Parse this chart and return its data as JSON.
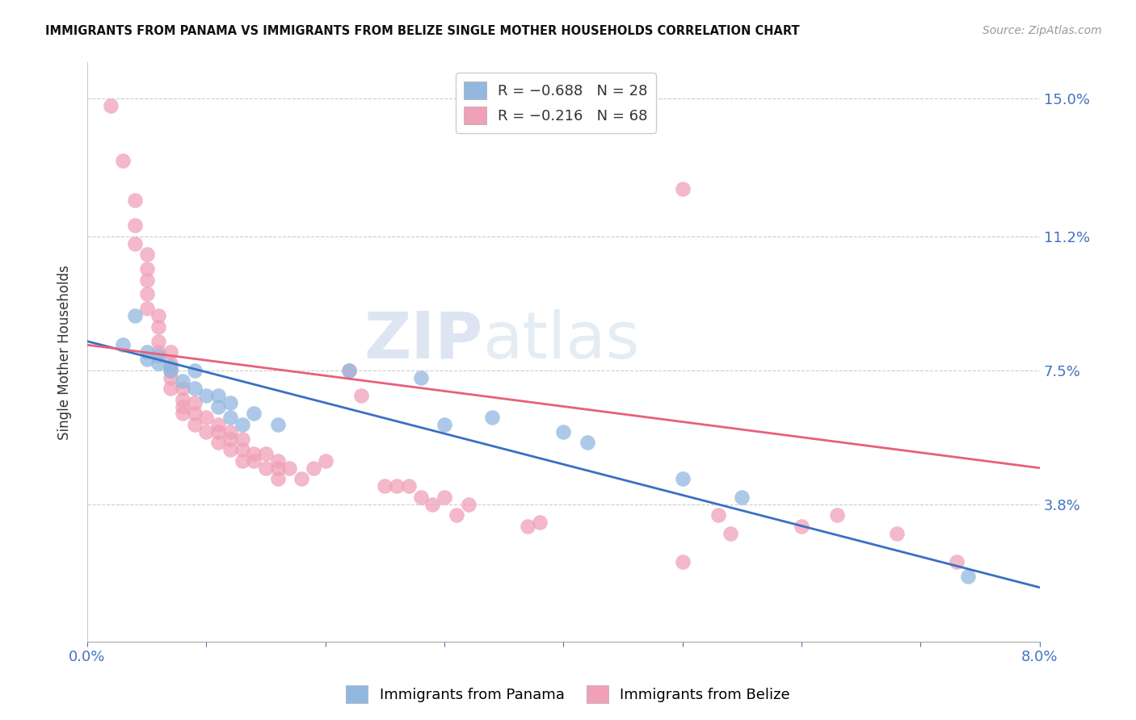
{
  "title": "IMMIGRANTS FROM PANAMA VS IMMIGRANTS FROM BELIZE SINGLE MOTHER HOUSEHOLDS CORRELATION CHART",
  "source": "Source: ZipAtlas.com",
  "ylabel": "Single Mother Households",
  "ytick_labels": [
    "15.0%",
    "11.2%",
    "7.5%",
    "3.8%"
  ],
  "ytick_values": [
    0.15,
    0.112,
    0.075,
    0.038
  ],
  "xmin": 0.0,
  "xmax": 0.08,
  "ymin": 0.0,
  "ymax": 0.16,
  "panama_color": "#93b8e0",
  "belize_color": "#f0a0b8",
  "panama_line_color": "#3a6fc4",
  "belize_line_color": "#e8607a",
  "panama_points": [
    [
      0.003,
      0.082
    ],
    [
      0.004,
      0.09
    ],
    [
      0.005,
      0.08
    ],
    [
      0.005,
      0.078
    ],
    [
      0.006,
      0.079
    ],
    [
      0.006,
      0.077
    ],
    [
      0.007,
      0.075
    ],
    [
      0.007,
      0.076
    ],
    [
      0.008,
      0.072
    ],
    [
      0.009,
      0.07
    ],
    [
      0.009,
      0.075
    ],
    [
      0.01,
      0.068
    ],
    [
      0.011,
      0.068
    ],
    [
      0.011,
      0.065
    ],
    [
      0.012,
      0.066
    ],
    [
      0.012,
      0.062
    ],
    [
      0.013,
      0.06
    ],
    [
      0.014,
      0.063
    ],
    [
      0.016,
      0.06
    ],
    [
      0.022,
      0.075
    ],
    [
      0.028,
      0.073
    ],
    [
      0.03,
      0.06
    ],
    [
      0.034,
      0.062
    ],
    [
      0.04,
      0.058
    ],
    [
      0.042,
      0.055
    ],
    [
      0.05,
      0.045
    ],
    [
      0.055,
      0.04
    ],
    [
      0.074,
      0.018
    ]
  ],
  "belize_points": [
    [
      0.002,
      0.148
    ],
    [
      0.003,
      0.133
    ],
    [
      0.004,
      0.122
    ],
    [
      0.004,
      0.115
    ],
    [
      0.004,
      0.11
    ],
    [
      0.005,
      0.107
    ],
    [
      0.005,
      0.103
    ],
    [
      0.005,
      0.1
    ],
    [
      0.005,
      0.096
    ],
    [
      0.005,
      0.092
    ],
    [
      0.006,
      0.09
    ],
    [
      0.006,
      0.087
    ],
    [
      0.006,
      0.083
    ],
    [
      0.006,
      0.08
    ],
    [
      0.007,
      0.08
    ],
    [
      0.007,
      0.077
    ],
    [
      0.007,
      0.075
    ],
    [
      0.007,
      0.073
    ],
    [
      0.007,
      0.07
    ],
    [
      0.008,
      0.07
    ],
    [
      0.008,
      0.067
    ],
    [
      0.008,
      0.065
    ],
    [
      0.008,
      0.063
    ],
    [
      0.009,
      0.066
    ],
    [
      0.009,
      0.063
    ],
    [
      0.009,
      0.06
    ],
    [
      0.01,
      0.062
    ],
    [
      0.01,
      0.058
    ],
    [
      0.011,
      0.058
    ],
    [
      0.011,
      0.06
    ],
    [
      0.011,
      0.055
    ],
    [
      0.012,
      0.058
    ],
    [
      0.012,
      0.056
    ],
    [
      0.012,
      0.053
    ],
    [
      0.013,
      0.056
    ],
    [
      0.013,
      0.053
    ],
    [
      0.013,
      0.05
    ],
    [
      0.014,
      0.052
    ],
    [
      0.014,
      0.05
    ],
    [
      0.015,
      0.052
    ],
    [
      0.015,
      0.048
    ],
    [
      0.016,
      0.05
    ],
    [
      0.016,
      0.048
    ],
    [
      0.016,
      0.045
    ],
    [
      0.017,
      0.048
    ],
    [
      0.018,
      0.045
    ],
    [
      0.019,
      0.048
    ],
    [
      0.02,
      0.05
    ],
    [
      0.022,
      0.075
    ],
    [
      0.023,
      0.068
    ],
    [
      0.025,
      0.043
    ],
    [
      0.026,
      0.043
    ],
    [
      0.027,
      0.043
    ],
    [
      0.028,
      0.04
    ],
    [
      0.029,
      0.038
    ],
    [
      0.03,
      0.04
    ],
    [
      0.031,
      0.035
    ],
    [
      0.032,
      0.038
    ],
    [
      0.037,
      0.032
    ],
    [
      0.038,
      0.033
    ],
    [
      0.05,
      0.125
    ],
    [
      0.05,
      0.022
    ],
    [
      0.053,
      0.035
    ],
    [
      0.054,
      0.03
    ],
    [
      0.06,
      0.032
    ],
    [
      0.063,
      0.035
    ],
    [
      0.068,
      0.03
    ],
    [
      0.073,
      0.022
    ]
  ]
}
